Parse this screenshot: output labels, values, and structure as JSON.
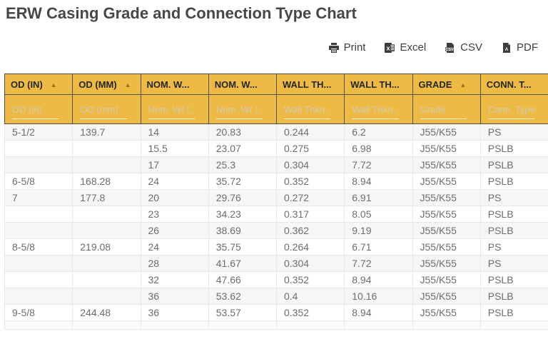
{
  "page": {
    "title": "ERW Casing Grade and Connection Type Chart"
  },
  "colors": {
    "header_yellow": "#edbb44",
    "header_text": "#262626",
    "sort_arrow": "#96741f",
    "dark_border": "#4e4e4e",
    "data_text": "#6d6d6d",
    "zebra_row": "#f6f6f6",
    "title_text": "#474747"
  },
  "toolbar": {
    "buttons": [
      {
        "label": "Print",
        "icon": "printer-icon"
      },
      {
        "label": "Excel",
        "icon": "excel-file-icon"
      },
      {
        "label": "CSV",
        "icon": "csv-file-icon"
      },
      {
        "label": "PDF",
        "icon": "pdf-file-icon"
      }
    ]
  },
  "table": {
    "columns": [
      {
        "header": "OD (IN)",
        "sorted_asc": true,
        "filter_placeholder": "OD (in)"
      },
      {
        "header": "OD (MM)",
        "sorted_asc": true,
        "filter_placeholder": "OD (mm)"
      },
      {
        "header": "NOM. W...",
        "sorted_asc": false,
        "filter_placeholder": "Nom. Wt (..."
      },
      {
        "header": "NOM. W...",
        "sorted_asc": false,
        "filter_placeholder": "Nom. Wt (..."
      },
      {
        "header": "WALL TH...",
        "sorted_asc": false,
        "filter_placeholder": "Wall Thkn..."
      },
      {
        "header": "WALL TH...",
        "sorted_asc": false,
        "filter_placeholder": "Wall Thkn..."
      },
      {
        "header": "GRADE",
        "sorted_asc": true,
        "filter_placeholder": "Grade"
      },
      {
        "header": "CONN. T...",
        "sorted_asc": false,
        "filter_placeholder": "Conn. Type"
      }
    ],
    "rows": [
      [
        "5-1/2",
        "139.7",
        "14",
        "20.83",
        "0.244",
        "6.2",
        "J55/K55",
        "PS"
      ],
      [
        "",
        "",
        "15.5",
        "23.07",
        "0.275",
        "6.98",
        "J55/K55",
        "PSLB"
      ],
      [
        "",
        "",
        "17",
        "25.3",
        "0.304",
        "7.72",
        "J55/K55",
        "PSLB"
      ],
      [
        "6-5/8",
        "168.28",
        "24",
        "35.72",
        "0.352",
        "8.94",
        "J55/K55",
        "PSLB"
      ],
      [
        "7",
        "177.8",
        "20",
        "29.76",
        "0.272",
        "6.91",
        "J55/K55",
        "PS"
      ],
      [
        "",
        "",
        "23",
        "34.23",
        "0.317",
        "8.05",
        "J55/K55",
        "PSLB"
      ],
      [
        "",
        "",
        "26",
        "38.69",
        "0.362",
        "9.19",
        "J55/K55",
        "PSLB"
      ],
      [
        "8-5/8",
        "219.08",
        "24",
        "35.75",
        "0.264",
        "6.71",
        "J55/K55",
        "PS"
      ],
      [
        "",
        "",
        "28",
        "41.67",
        "0.304",
        "7.72",
        "J55/K55",
        "PS"
      ],
      [
        "",
        "",
        "32",
        "47.66",
        "0.352",
        "8.94",
        "J55/K55",
        "PSLB"
      ],
      [
        "",
        "",
        "36",
        "53.62",
        "0.4",
        "10.16",
        "J55/K55",
        "PSLB"
      ],
      [
        "9-5/8",
        "244.48",
        "36",
        "53.57",
        "0.352",
        "8.94",
        "J55/K55",
        "PSLB"
      ]
    ]
  }
}
